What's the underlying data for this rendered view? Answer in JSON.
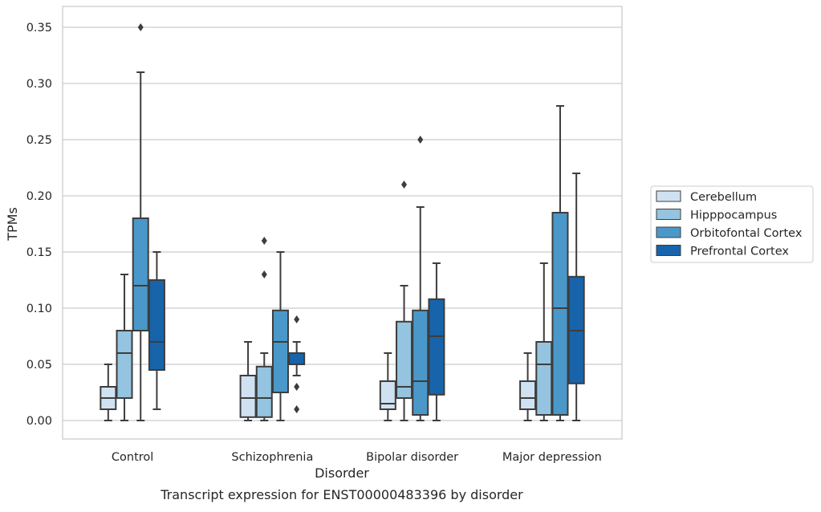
{
  "chart_data": {
    "type": "box",
    "caption": "Transcript expression for ENST00000483396 by disorder",
    "xlabel": "Disorder",
    "ylabel": "TPMs",
    "ylim": [
      -0.017,
      0.367
    ],
    "yticks": [
      0.0,
      0.05,
      0.1,
      0.15,
      0.2,
      0.25,
      0.3,
      0.35
    ],
    "ytick_labels": [
      "0.00",
      "0.05",
      "0.10",
      "0.15",
      "0.20",
      "0.25",
      "0.30",
      "0.35"
    ],
    "grid": "horizontal",
    "legend_position": "right",
    "categories": [
      "Control",
      "Schizophrenia",
      "Bipolar disorder",
      "Major depression"
    ],
    "series": [
      {
        "name": "Cerebellum",
        "color": "#d0e1f2",
        "boxes": [
          {
            "whisker_low": 0.0,
            "q1": 0.01,
            "median": 0.02,
            "q3": 0.03,
            "whisker_high": 0.05,
            "outliers": []
          },
          {
            "whisker_low": 0.0,
            "q1": 0.003,
            "median": 0.02,
            "q3": 0.04,
            "whisker_high": 0.07,
            "outliers": []
          },
          {
            "whisker_low": 0.0,
            "q1": 0.01,
            "median": 0.015,
            "q3": 0.035,
            "whisker_high": 0.06,
            "outliers": []
          },
          {
            "whisker_low": 0.0,
            "q1": 0.01,
            "median": 0.02,
            "q3": 0.035,
            "whisker_high": 0.06,
            "outliers": []
          }
        ]
      },
      {
        "name": "Hipppocampus",
        "color": "#94c4df",
        "boxes": [
          {
            "whisker_low": 0.0,
            "q1": 0.02,
            "median": 0.06,
            "q3": 0.08,
            "whisker_high": 0.13,
            "outliers": []
          },
          {
            "whisker_low": 0.0,
            "q1": 0.003,
            "median": 0.02,
            "q3": 0.048,
            "whisker_high": 0.06,
            "outliers": [
              0.13,
              0.16
            ]
          },
          {
            "whisker_low": 0.0,
            "q1": 0.02,
            "median": 0.03,
            "q3": 0.088,
            "whisker_high": 0.12,
            "outliers": [
              0.21
            ]
          },
          {
            "whisker_low": 0.0,
            "q1": 0.005,
            "median": 0.05,
            "q3": 0.07,
            "whisker_high": 0.14,
            "outliers": []
          }
        ]
      },
      {
        "name": "Orbitofontal Cortex",
        "color": "#4a98c9",
        "boxes": [
          {
            "whisker_low": 0.0,
            "q1": 0.08,
            "median": 0.12,
            "q3": 0.18,
            "whisker_high": 0.31,
            "outliers": [
              0.35
            ]
          },
          {
            "whisker_low": 0.0,
            "q1": 0.025,
            "median": 0.07,
            "q3": 0.098,
            "whisker_high": 0.15,
            "outliers": []
          },
          {
            "whisker_low": 0.0,
            "q1": 0.005,
            "median": 0.035,
            "q3": 0.098,
            "whisker_high": 0.19,
            "outliers": [
              0.25
            ]
          },
          {
            "whisker_low": 0.0,
            "q1": 0.005,
            "median": 0.1,
            "q3": 0.185,
            "whisker_high": 0.28,
            "outliers": []
          }
        ]
      },
      {
        "name": "Prefrontal Cortex",
        "color": "#1764ab",
        "boxes": [
          {
            "whisker_low": 0.01,
            "q1": 0.045,
            "median": 0.07,
            "q3": 0.125,
            "whisker_high": 0.15,
            "outliers": []
          },
          {
            "whisker_low": 0.04,
            "q1": 0.05,
            "median": 0.05,
            "q3": 0.06,
            "whisker_high": 0.07,
            "outliers": [
              0.01,
              0.03,
              0.09
            ]
          },
          {
            "whisker_low": 0.0,
            "q1": 0.023,
            "median": 0.075,
            "q3": 0.108,
            "whisker_high": 0.14,
            "outliers": []
          },
          {
            "whisker_low": 0.0,
            "q1": 0.033,
            "median": 0.08,
            "q3": 0.128,
            "whisker_high": 0.22,
            "outliers": []
          }
        ]
      }
    ]
  }
}
